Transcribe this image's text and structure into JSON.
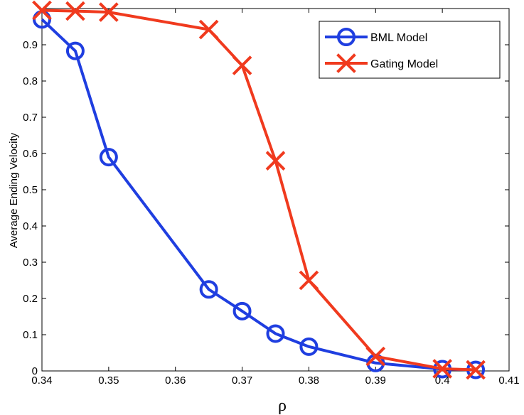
{
  "chart_data": {
    "type": "line",
    "title": "",
    "xlabel": "ρ",
    "ylabel": "Average Ending Velocity",
    "xlim": [
      0.34,
      0.41
    ],
    "ylim": [
      0,
      1
    ],
    "x_ticks": [
      "0.34",
      "0.35",
      "0.36",
      "0.37",
      "0.38",
      "0.39",
      "0.4",
      "0.41"
    ],
    "y_ticks": [
      "0",
      "0.1",
      "0.2",
      "0.3",
      "0.4",
      "0.5",
      "0.6",
      "0.7",
      "0.8",
      "0.9"
    ],
    "x_tick_values": [
      0.34,
      0.35,
      0.36,
      0.37,
      0.38,
      0.39,
      0.4,
      0.41
    ],
    "y_tick_values": [
      0,
      0.1,
      0.2,
      0.3,
      0.4,
      0.5,
      0.6,
      0.7,
      0.8,
      0.9
    ],
    "grid": false,
    "legend_position": "top-right",
    "series": [
      {
        "name": "BML Model",
        "color": "#1f3ee0",
        "marker": "circle",
        "x": [
          0.34,
          0.345,
          0.35,
          0.365,
          0.37,
          0.375,
          0.38,
          0.39,
          0.4,
          0.405
        ],
        "y": [
          0.97,
          0.883,
          0.59,
          0.225,
          0.165,
          0.103,
          0.067,
          0.022,
          0.005,
          0.003
        ]
      },
      {
        "name": "Gating Model",
        "color": "#f03a1e",
        "marker": "x",
        "x": [
          0.34,
          0.345,
          0.35,
          0.365,
          0.37,
          0.375,
          0.38,
          0.39,
          0.4,
          0.405
        ],
        "y": [
          0.995,
          0.993,
          0.99,
          0.942,
          0.843,
          0.58,
          0.25,
          0.04,
          0.006,
          0.003
        ]
      }
    ]
  }
}
